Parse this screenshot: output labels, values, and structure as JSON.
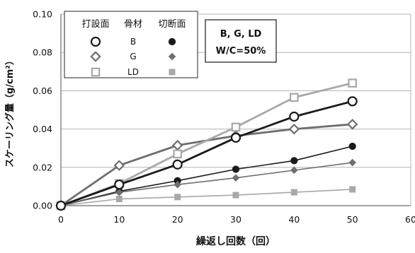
{
  "chart_data": {
    "type": "line",
    "xlabel": "繰返し回数（回）",
    "ylabel": "スケーリング量（g/cm²）",
    "xlim": [
      0,
      60
    ],
    "ylim": [
      0,
      0.1
    ],
    "x_ticks": [
      "0",
      "10",
      "20",
      "30",
      "40",
      "50",
      "60"
    ],
    "y_ticks": [
      "0.00",
      "0.02",
      "0.04",
      "0.06",
      "0.08",
      "0.10"
    ],
    "grid": "horizontal",
    "legend_position": "top-left",
    "legend": {
      "header": [
        "打設面",
        "骨材",
        "切断面"
      ],
      "rows": [
        {
          "aggregate": "B",
          "cast_series": "B-打設面",
          "cut_series": "B-切断面"
        },
        {
          "aggregate": "G",
          "cast_series": "G-打設面",
          "cut_series": "G-切断面"
        },
        {
          "aggregate": "LD",
          "cast_series": "LD-打設面",
          "cut_series": "LD-切断面"
        }
      ]
    },
    "annotation": [
      "B, G, LD",
      "W/C=50%"
    ],
    "x": [
      0,
      10,
      20,
      30,
      40,
      50
    ],
    "series": [
      {
        "name": "B-打設面",
        "marker": "circle-open",
        "color": "#1a1a1a",
        "stroke_width": 2.8,
        "values": [
          0.0,
          0.011,
          0.0215,
          0.0355,
          0.0465,
          0.0545
        ]
      },
      {
        "name": "G-打設面",
        "marker": "diamond-open",
        "color": "#6e6e6e",
        "stroke_width": 2.8,
        "values": [
          0.0,
          0.021,
          0.0315,
          0.0365,
          0.04,
          0.0425
        ]
      },
      {
        "name": "LD-打設面",
        "marker": "square-open",
        "color": "#a8a8a8",
        "stroke_width": 2.8,
        "values": [
          0.0,
          0.0115,
          0.027,
          0.041,
          0.0565,
          0.064
        ]
      },
      {
        "name": "B-切断面",
        "marker": "circle-filled",
        "color": "#1a1a1a",
        "stroke_width": 1.6,
        "values": [
          0.0,
          0.0075,
          0.013,
          0.019,
          0.0235,
          0.031
        ]
      },
      {
        "name": "G-切断面",
        "marker": "diamond-filled",
        "color": "#6e6e6e",
        "stroke_width": 1.6,
        "values": [
          0.0,
          0.007,
          0.011,
          0.0145,
          0.0185,
          0.0225
        ]
      },
      {
        "name": "LD-切断面",
        "marker": "square-filled",
        "color": "#a8a8a8",
        "stroke_width": 1.6,
        "values": [
          0.0,
          0.0035,
          0.0045,
          0.0055,
          0.007,
          0.0085
        ]
      }
    ]
  }
}
